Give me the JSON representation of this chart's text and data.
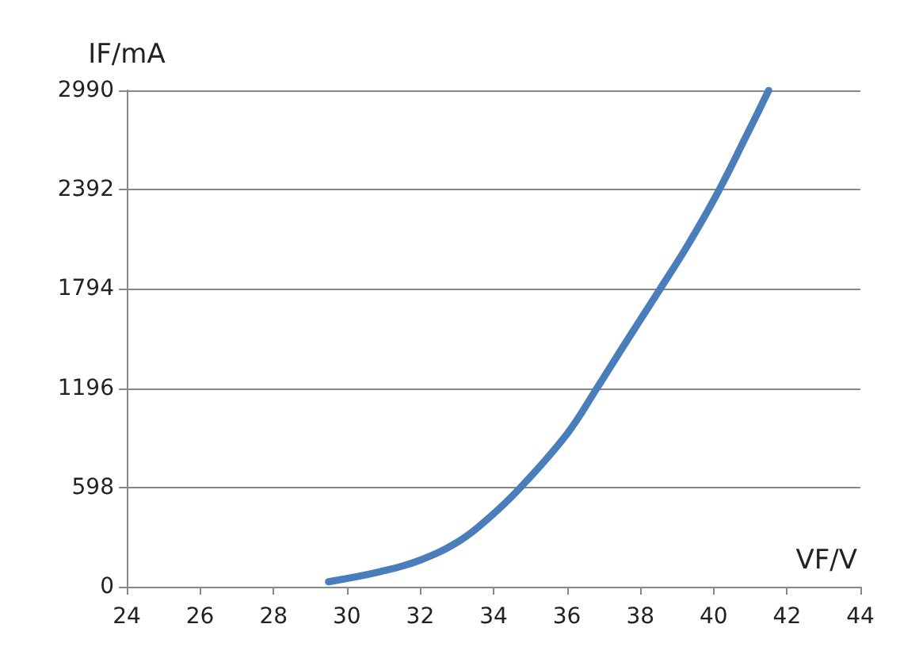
{
  "chart_data": {
    "type": "line",
    "xlabel": "VF/V",
    "ylabel": "IF/mA",
    "xlim": [
      24,
      44
    ],
    "xticks": [
      24,
      26,
      28,
      30,
      32,
      34,
      36,
      38,
      40,
      42,
      44
    ],
    "ylim": [
      0,
      2990
    ],
    "yticks": [
      0,
      598,
      1196,
      1794,
      2392,
      2990
    ],
    "grid": "y",
    "marker": "none",
    "line_style": "solid",
    "series": [
      {
        "color": "#4a7ebb",
        "x": [
          29.5,
          30.9,
          32,
          33.1,
          33.9,
          34.7,
          36,
          36.8,
          37.6,
          38.5,
          39.3,
          40.1,
          40.9,
          41.5
        ],
        "values": [
          30,
          90,
          160,
          280,
          420,
          590,
          920,
          1190,
          1470,
          1780,
          2060,
          2370,
          2720,
          2990
        ]
      }
    ]
  }
}
